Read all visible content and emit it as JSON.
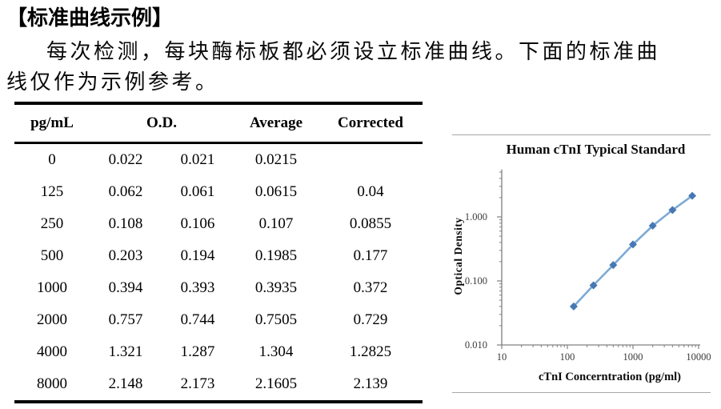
{
  "page": {
    "heading": "【标准曲线示例】",
    "paragraph_line1": "每次检测，每块酶标板都必须设立标准曲线。下面的标准曲",
    "paragraph_line2": "线仅作为示例参考。"
  },
  "table": {
    "col1_header": "pg/mL",
    "od_header": "O.D.",
    "average_header": "Average",
    "corrected_header": "Corrected",
    "rows": [
      {
        "conc": "0",
        "od1": "0.022",
        "od2": "0.021",
        "average": "0.0215",
        "corrected": ""
      },
      {
        "conc": "125",
        "od1": "0.062",
        "od2": "0.061",
        "average": "0.0615",
        "corrected": "0.04"
      },
      {
        "conc": "250",
        "od1": "0.108",
        "od2": "0.106",
        "average": "0.107",
        "corrected": "0.0855"
      },
      {
        "conc": "500",
        "od1": "0.203",
        "od2": "0.194",
        "average": "0.1985",
        "corrected": "0.177"
      },
      {
        "conc": "1000",
        "od1": "0.394",
        "od2": "0.393",
        "average": "0.3935",
        "corrected": "0.372"
      },
      {
        "conc": "2000",
        "od1": "0.757",
        "od2": "0.744",
        "average": "0.7505",
        "corrected": "0.729"
      },
      {
        "conc": "4000",
        "od1": "1.321",
        "od2": "1.287",
        "average": "1.304",
        "corrected": "1.2825"
      },
      {
        "conc": "8000",
        "od1": "2.148",
        "od2": "2.173",
        "average": "2.1605",
        "corrected": "2.139"
      }
    ]
  },
  "chart_data": {
    "type": "line",
    "title": "Human cTnI Typical Standard",
    "xlabel": "cTnI Concerntration (pg/ml)",
    "ylabel": "Optical Density",
    "x_scale": "log",
    "y_scale": "log",
    "xlim": [
      10,
      10000
    ],
    "ylim": [
      0.01,
      5.5
    ],
    "x_ticks": [
      10,
      100,
      1000,
      10000
    ],
    "x_tick_labels": [
      "10",
      "100",
      "1000",
      "10000"
    ],
    "y_ticks": [
      0.01,
      0.1,
      1
    ],
    "y_tick_labels": [
      "0.010",
      "0.100",
      "1.000"
    ],
    "grid": false,
    "legend": false,
    "series": [
      {
        "name": "Corrected O.D.",
        "x": [
          125,
          250,
          500,
          1000,
          2000,
          4000,
          8000
        ],
        "y": [
          0.04,
          0.0855,
          0.177,
          0.372,
          0.729,
          1.2825,
          2.139
        ],
        "marker": "diamond"
      }
    ],
    "colors": {
      "line": "#7caad5",
      "marker": "#4678b4",
      "axis": "#808080",
      "tick_label": "#3a3a3a",
      "divider": "#a6a6a6"
    }
  }
}
